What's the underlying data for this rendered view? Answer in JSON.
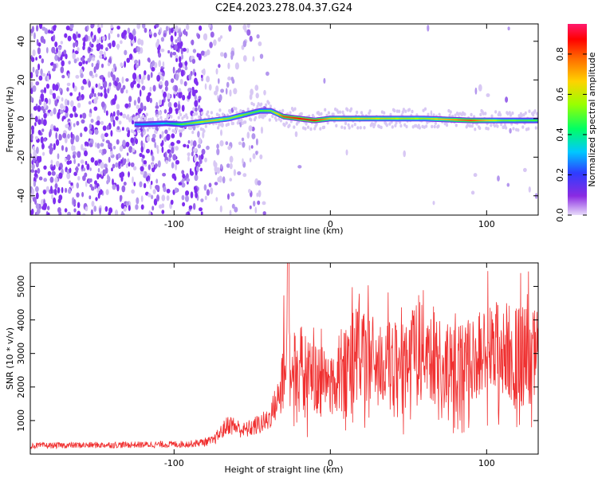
{
  "title": "C2E4.2023.278.04.37.G24",
  "colors": {
    "snr_line": "#f03030",
    "faint": "#d8c8f4",
    "light": "#b497ee",
    "mid": "#9a66ea",
    "dark": "#7f2ef0"
  },
  "chart_data": [
    {
      "type": "heatmap",
      "xlabel": "Height of straight line (km)",
      "ylabel": "Frequency (Hz)",
      "xlim": [
        -192,
        133
      ],
      "ylim": [
        -50,
        49
      ],
      "xticks": [
        -100,
        0,
        100
      ],
      "yticks": [
        -40,
        -20,
        0,
        20,
        40
      ],
      "colorbar": {
        "label": "Normalized spectral amplitude",
        "range": [
          0.0,
          0.95
        ],
        "ticks": [
          "0.0",
          "0.2",
          "0.4",
          "0.6",
          "0.8"
        ],
        "tick_values": [
          0.0,
          0.2,
          0.4,
          0.6,
          0.8
        ]
      },
      "ridge": {
        "x": [
          -120,
          -105,
          -95,
          -85,
          -75,
          -65,
          -55,
          -45,
          -38,
          -30,
          -20,
          -10,
          0,
          30,
          60,
          90,
          110,
          133
        ],
        "y": [
          -3,
          -2.5,
          -3,
          -2,
          -1,
          0,
          2,
          4,
          4,
          1,
          0,
          -1,
          0,
          0,
          0,
          -1,
          -1,
          -1
        ],
        "amplitude": [
          0.3,
          0.35,
          0.5,
          0.6,
          0.65,
          0.6,
          0.55,
          0.5,
          0.55,
          0.85,
          0.9,
          0.9,
          0.7,
          0.65,
          0.6,
          0.85,
          0.55,
          0.5
        ]
      }
    },
    {
      "type": "line",
      "xlabel": "Height of straight line (km)",
      "ylabel": "SNR (10 * v/v)",
      "xlim": [
        -192,
        133
      ],
      "ylim": [
        0,
        5700
      ],
      "xticks": [
        -100,
        0,
        100
      ],
      "yticks": [
        1000,
        2000,
        3000,
        4000,
        5000
      ],
      "envelope": {
        "x": [
          -192,
          -150,
          -120,
          -90,
          -75,
          -65,
          -55,
          -45,
          -40,
          -32,
          -30,
          -25,
          -15,
          0,
          14,
          20,
          30,
          40,
          60,
          70,
          80,
          100,
          110,
          120,
          133
        ],
        "y": [
          250,
          270,
          280,
          300,
          400,
          900,
          700,
          900,
          1000,
          1800,
          2500,
          2800,
          2400,
          2000,
          3000,
          3000,
          2700,
          2600,
          3300,
          2700,
          2500,
          3000,
          3100,
          3000,
          2900
        ]
      }
    }
  ]
}
